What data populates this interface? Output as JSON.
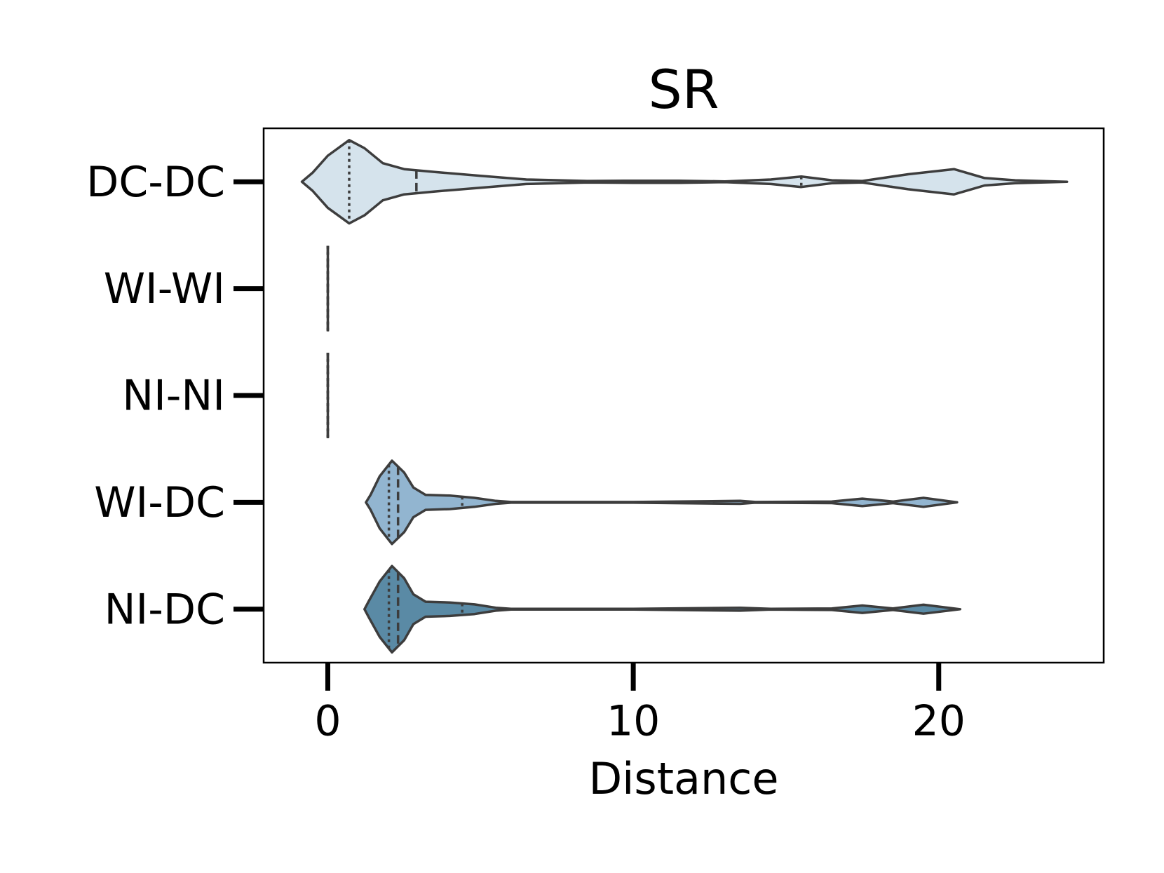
{
  "chart_data": {
    "type": "violin",
    "title": "SR",
    "x_label": "Distance",
    "categories": [
      "DC-DC",
      "WI-WI",
      "NI-NI",
      "WI-DC",
      "NI-DC"
    ],
    "xlim": [
      -2.1,
      25.4
    ],
    "xticks": [
      0,
      10,
      20
    ],
    "series": [
      {
        "name": "DC-DC",
        "color": "#d5e3ec",
        "quartiles": [
          0.7,
          2.9,
          15.5
        ],
        "profile": {
          "x": [
            -0.85,
            -0.5,
            0,
            0.7,
            1.2,
            1.8,
            2.5,
            3.5,
            5,
            6.5,
            8.5,
            10,
            11.5,
            13,
            14.5,
            15.5,
            16.5,
            17.5,
            19,
            20.5,
            21.5,
            22.5,
            24.2
          ],
          "width": [
            0,
            0.084,
            0.244,
            0.39,
            0.314,
            0.174,
            0.118,
            0.091,
            0.056,
            0.021,
            0.007,
            0.01,
            0.01,
            0.003,
            0.021,
            0.049,
            0.014,
            0.007,
            0.07,
            0.118,
            0.035,
            0.014,
            0
          ]
        }
      },
      {
        "name": "WI-WI",
        "color": "#c0d4e3",
        "quartiles": [
          0,
          0,
          0
        ],
        "profile": {
          "x": [
            0
          ],
          "width": [
            0.4
          ]
        }
      },
      {
        "name": "NI-NI",
        "color": "#a9c5da",
        "quartiles": [
          0,
          0,
          0
        ],
        "profile": {
          "x": [
            0
          ],
          "width": [
            0.4
          ]
        }
      },
      {
        "name": "WI-DC",
        "color": "#92b5d0",
        "quartiles": [
          2.0,
          2.3,
          4.4
        ],
        "profile": {
          "x": [
            1.25,
            1.4,
            1.7,
            2.1,
            2.5,
            2.8,
            3.2,
            4,
            4.8,
            5.5,
            6,
            10,
            13.5,
            14,
            16.5,
            17.5,
            18.5,
            19.5,
            20.6
          ],
          "width": [
            0,
            0.07,
            0.244,
            0.39,
            0.279,
            0.139,
            0.07,
            0.063,
            0.042,
            0.014,
            0.003,
            0.003,
            0.014,
            0.003,
            0.007,
            0.035,
            0.007,
            0.042,
            0
          ]
        }
      },
      {
        "name": "NI-DC",
        "color": "#5a8aa5",
        "quartiles": [
          2.0,
          2.3,
          4.4
        ],
        "profile": {
          "x": [
            1.2,
            1.35,
            1.7,
            2.1,
            2.5,
            2.8,
            3.2,
            4,
            4.8,
            5.5,
            6,
            10,
            13.5,
            14.5,
            16.5,
            17.5,
            18.5,
            19.5,
            20.7
          ],
          "width": [
            0,
            0.08,
            0.26,
            0.404,
            0.29,
            0.14,
            0.07,
            0.063,
            0.045,
            0.014,
            0.003,
            0.003,
            0.014,
            0.003,
            0.007,
            0.035,
            0.007,
            0.042,
            0
          ]
        }
      }
    ]
  }
}
